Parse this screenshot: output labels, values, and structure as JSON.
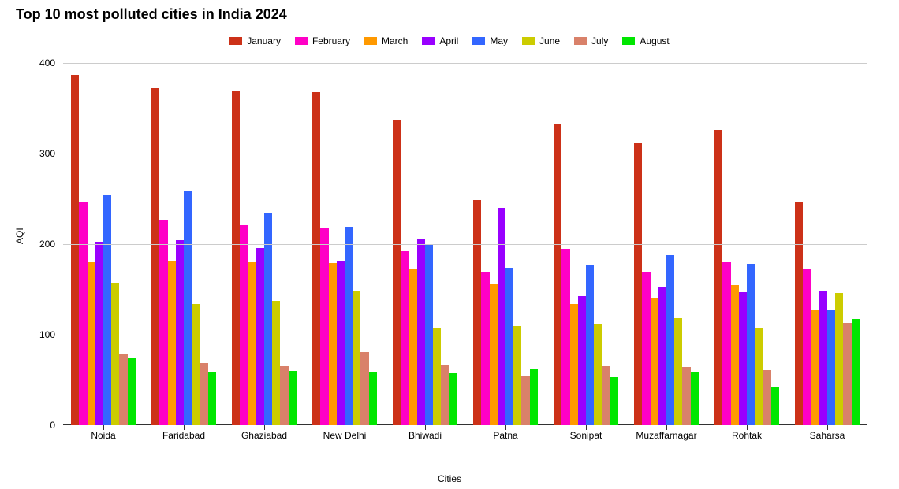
{
  "chart": {
    "type": "bar",
    "title": "Top 10 most polluted cities in India 2024",
    "title_fontsize": 18,
    "title_fontweight": "bold",
    "xlabel": "Cities",
    "ylabel": "AQI",
    "label_fontsize": 12,
    "background_color": "#ffffff",
    "grid_color": "#cccccc",
    "axis_color": "#333333",
    "ylim": [
      0,
      400
    ],
    "ytick_step": 100,
    "yticks": [
      0,
      100,
      200,
      300,
      400
    ],
    "bar_width": 1.0,
    "group_padding_pct": 10,
    "series": [
      {
        "name": "January",
        "color": "#cc3118"
      },
      {
        "name": "February",
        "color": "#ff00c6"
      },
      {
        "name": "March",
        "color": "#ff9900"
      },
      {
        "name": "April",
        "color": "#9900ff"
      },
      {
        "name": "May",
        "color": "#3366ff"
      },
      {
        "name": "June",
        "color": "#cccc00"
      },
      {
        "name": "July",
        "color": "#d9816a"
      },
      {
        "name": "August",
        "color": "#00e600"
      }
    ],
    "categories": [
      "Noida",
      "Faridabad",
      "Ghaziabad",
      "New Delhi",
      "Bhiwadi",
      "Patna",
      "Sonipat",
      "Muzaffarnagar",
      "Rohtak",
      "Saharsa"
    ],
    "data": {
      "Noida": [
        387,
        247,
        180,
        203,
        254,
        157,
        78,
        74
      ],
      "Faridabad": [
        372,
        226,
        181,
        204,
        259,
        134,
        69,
        59
      ],
      "Ghaziabad": [
        369,
        221,
        180,
        196,
        235,
        137,
        65,
        60
      ],
      "New Delhi": [
        368,
        218,
        179,
        182,
        219,
        148,
        81,
        59
      ],
      "Bhiwadi": [
        337,
        192,
        173,
        206,
        199,
        108,
        67,
        57
      ],
      "Patna": [
        249,
        169,
        156,
        240,
        174,
        110,
        55,
        62
      ],
      "Sonipat": [
        332,
        195,
        134,
        143,
        177,
        111,
        65,
        53
      ],
      "Muzaffarnagar": [
        312,
        169,
        140,
        153,
        188,
        118,
        64,
        58
      ],
      "Rohtak": [
        326,
        180,
        155,
        147,
        178,
        108,
        61,
        42
      ],
      "Saharsa": [
        246,
        172,
        127,
        148,
        127,
        146,
        113,
        117
      ]
    }
  }
}
